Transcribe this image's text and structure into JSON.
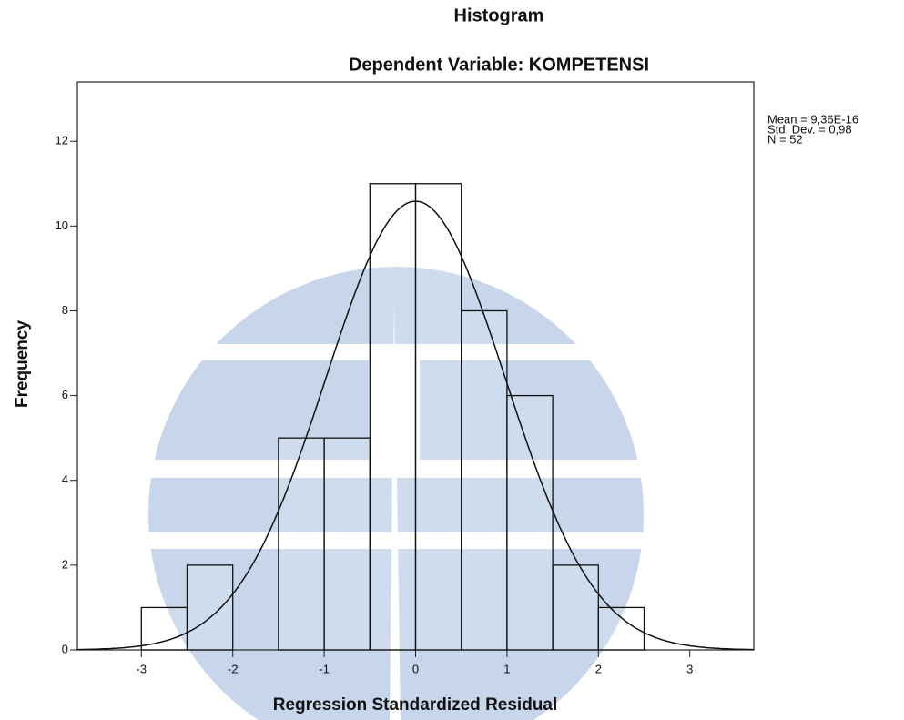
{
  "chart_data": {
    "type": "histogram",
    "title": "Histogram",
    "subtitle": "Dependent Variable: KOMPETENSI",
    "x_label": "Regression Standardized Residual",
    "y_label": "Frequency",
    "bins": [
      -3,
      -2.5,
      -2,
      -1.5,
      -1,
      -0.5,
      0,
      0.5,
      1,
      1.5,
      2,
      2.5
    ],
    "values": [
      1,
      2,
      0,
      5,
      5,
      11,
      11,
      8,
      6,
      2,
      1
    ],
    "color": "#ffffff",
    "xlim": [
      -3.7,
      3.7
    ],
    "ylim": [
      0,
      13.4
    ],
    "xticks": [
      -3,
      -2,
      -1,
      0,
      1,
      2,
      3
    ],
    "yticks": [
      0,
      2,
      4,
      6,
      8,
      10,
      12
    ],
    "normal_curve": {
      "mean": {
        "value": 9.36e-16,
        "label": "Mean = 9,36E-16"
      },
      "std": {
        "value": 0.98,
        "label": "Std. Dev. = 0,98"
      },
      "n": {
        "value": 52,
        "label": "N = 52"
      }
    }
  }
}
